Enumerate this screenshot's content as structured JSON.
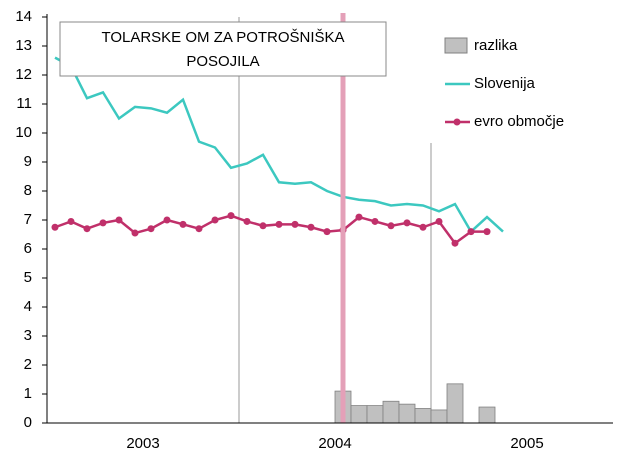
{
  "chart_data": {
    "type": "combo",
    "title": [
      "TOLARSKE OM ZA POTROŠNIŠKA",
      "POSOJILA"
    ],
    "year_labels": [
      "2003",
      "2004",
      "2005"
    ],
    "categories": [
      null,
      null,
      null,
      null,
      null,
      null,
      null,
      null,
      null,
      null,
      null,
      null,
      null,
      null,
      null,
      null,
      null,
      null,
      null,
      null,
      null,
      null,
      null,
      null,
      null,
      null,
      null,
      null,
      null,
      null,
      null,
      null,
      null,
      null,
      null,
      null
    ],
    "series": [
      {
        "name": "razlika",
        "kind": "bar",
        "color": "#c0c0c0",
        "values": [
          null,
          null,
          null,
          null,
          null,
          null,
          null,
          null,
          null,
          null,
          null,
          null,
          null,
          null,
          null,
          null,
          null,
          null,
          1.1,
          0.6,
          0.6,
          0.75,
          0.65,
          0.5,
          0.45,
          1.35,
          null,
          0.55,
          null,
          null,
          null,
          null,
          null,
          null,
          null,
          null
        ]
      },
      {
        "name": "Slovenija",
        "kind": "line",
        "color": "#3cc8c0",
        "values": [
          12.6,
          12.3,
          11.2,
          11.4,
          10.5,
          10.9,
          10.85,
          10.7,
          11.15,
          9.7,
          9.5,
          8.8,
          8.95,
          9.25,
          8.3,
          8.25,
          8.3,
          8.0,
          7.8,
          7.7,
          7.65,
          7.5,
          7.55,
          7.5,
          7.3,
          7.55,
          6.6,
          7.1,
          6.6,
          null,
          null,
          null,
          null,
          null,
          null,
          null
        ]
      },
      {
        "name": "evro območje",
        "kind": "line-marker",
        "color": "#c0306a",
        "values": [
          6.75,
          6.95,
          6.7,
          6.9,
          7.0,
          6.55,
          6.7,
          7.0,
          6.85,
          6.7,
          7.0,
          7.15,
          6.95,
          6.8,
          6.85,
          6.85,
          6.75,
          6.6,
          6.65,
          7.1,
          6.95,
          6.8,
          6.9,
          6.75,
          6.95,
          6.2,
          6.6,
          6.6,
          null,
          null,
          null,
          null,
          null,
          null,
          null,
          null
        ]
      }
    ],
    "ylim": [
      0,
      14
    ],
    "yticks": [
      0,
      1,
      2,
      3,
      4,
      5,
      6,
      7,
      8,
      9,
      10,
      11,
      12,
      13,
      14
    ]
  }
}
